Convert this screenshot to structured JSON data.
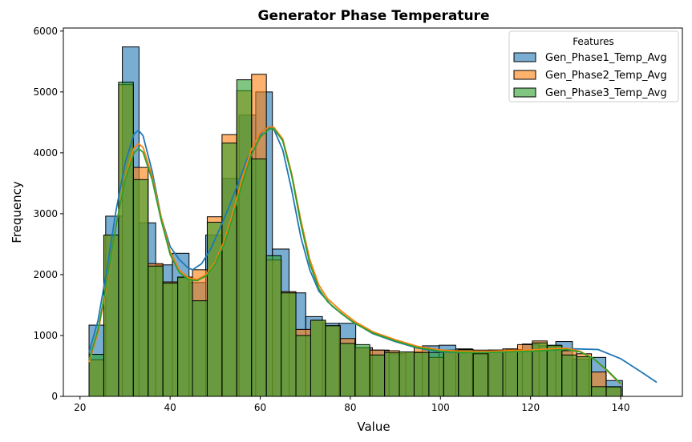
{
  "chart_data": {
    "type": "bar",
    "title": "Generator Phase Temperature",
    "xlabel": "Value",
    "ylabel": "Frequency",
    "xlim": [
      16.3,
      153.7
    ],
    "ylim": [
      0,
      6050
    ],
    "xticks": [
      20,
      40,
      60,
      80,
      100,
      120,
      140
    ],
    "yticks": [
      0,
      1000,
      2000,
      3000,
      4000,
      5000,
      6000
    ],
    "legend": {
      "title": "Features",
      "position": "top-right"
    },
    "colors": {
      "Gen_Phase1_Temp_Avg": "#1f77b4",
      "Gen_Phase2_Temp_Avg": "#ff7f0e",
      "Gen_Phase3_Temp_Avg": "#2ca02c"
    },
    "series": [
      {
        "name": "Gen_Phase1_Temp_Avg",
        "bin_start": 22,
        "bin_width": 3.7,
        "values": [
          1170,
          2960,
          5740,
          2850,
          2160,
          2350,
          1870,
          2650,
          3580,
          4620,
          5000,
          2420,
          1700,
          1310,
          1200,
          1200,
          800,
          760,
          700,
          730,
          830,
          840,
          780,
          760,
          760,
          770,
          860,
          830,
          900,
          610,
          640,
          260
        ],
        "kde": [
          [
            22,
            720
          ],
          [
            24,
            1250
          ],
          [
            26,
            2100
          ],
          [
            28,
            3050
          ],
          [
            30,
            3830
          ],
          [
            32,
            4310
          ],
          [
            33,
            4370
          ],
          [
            34,
            4280
          ],
          [
            36,
            3700
          ],
          [
            38,
            2950
          ],
          [
            40,
            2460
          ],
          [
            42,
            2250
          ],
          [
            44,
            2110
          ],
          [
            45,
            2080
          ],
          [
            47,
            2180
          ],
          [
            49,
            2420
          ],
          [
            51,
            2750
          ],
          [
            53,
            3100
          ],
          [
            55,
            3480
          ],
          [
            57,
            3880
          ],
          [
            59,
            4200
          ],
          [
            61,
            4390
          ],
          [
            62,
            4410
          ],
          [
            63,
            4390
          ],
          [
            65,
            4050
          ],
          [
            67,
            3380
          ],
          [
            69,
            2620
          ],
          [
            71,
            2080
          ],
          [
            73,
            1730
          ],
          [
            76,
            1480
          ],
          [
            80,
            1250
          ],
          [
            85,
            1030
          ],
          [
            90,
            900
          ],
          [
            95,
            790
          ],
          [
            100,
            730
          ],
          [
            105,
            720
          ],
          [
            110,
            730
          ],
          [
            115,
            740
          ],
          [
            120,
            745
          ],
          [
            125,
            760
          ],
          [
            130,
            780
          ],
          [
            135,
            770
          ],
          [
            140,
            620
          ],
          [
            145,
            380
          ],
          [
            148,
            230
          ]
        ]
      },
      {
        "name": "Gen_Phase2_Temp_Avg",
        "bin_start": 22,
        "bin_width": 3.28,
        "values": [
          600,
          2650,
          5120,
          3760,
          2180,
          1880,
          1950,
          2080,
          2950,
          4300,
          5020,
          5290,
          2240,
          1720,
          1100,
          1250,
          1160,
          950,
          800,
          760,
          750,
          730,
          800,
          640,
          750,
          760,
          730,
          760,
          780,
          850,
          910,
          830,
          750,
          700,
          400,
          150
        ],
        "kde": [
          [
            22,
            560
          ],
          [
            24,
            1050
          ],
          [
            26,
            1850
          ],
          [
            28,
            2800
          ],
          [
            30,
            3580
          ],
          [
            32,
            4080
          ],
          [
            33,
            4150
          ],
          [
            34,
            4090
          ],
          [
            36,
            3620
          ],
          [
            38,
            2950
          ],
          [
            40,
            2380
          ],
          [
            42,
            2080
          ],
          [
            44,
            1950
          ],
          [
            46,
            1920
          ],
          [
            48,
            2000
          ],
          [
            50,
            2200
          ],
          [
            52,
            2550
          ],
          [
            54,
            3030
          ],
          [
            56,
            3580
          ],
          [
            58,
            4050
          ],
          [
            60,
            4330
          ],
          [
            62,
            4430
          ],
          [
            63,
            4420
          ],
          [
            65,
            4230
          ],
          [
            67,
            3650
          ],
          [
            69,
            2900
          ],
          [
            71,
            2250
          ],
          [
            73,
            1830
          ],
          [
            75,
            1600
          ],
          [
            78,
            1400
          ],
          [
            81,
            1230
          ],
          [
            85,
            1060
          ],
          [
            90,
            930
          ],
          [
            95,
            820
          ],
          [
            100,
            760
          ],
          [
            105,
            740
          ],
          [
            110,
            740
          ],
          [
            115,
            750
          ],
          [
            120,
            760
          ],
          [
            125,
            780
          ],
          [
            128,
            790
          ],
          [
            131,
            740
          ],
          [
            134,
            620
          ],
          [
            137,
            420
          ],
          [
            140,
            200
          ]
        ]
      },
      {
        "name": "Gen_Phase3_Temp_Avg",
        "bin_start": 22,
        "bin_width": 3.28,
        "values": [
          690,
          2650,
          5160,
          3560,
          2140,
          1860,
          1960,
          1570,
          2860,
          4160,
          5200,
          3900,
          2310,
          1700,
          1000,
          1250,
          1160,
          870,
          850,
          680,
          720,
          730,
          720,
          720,
          760,
          770,
          700,
          750,
          750,
          740,
          880,
          840,
          680,
          650,
          160,
          160
        ],
        "kde": [
          [
            22,
            600
          ],
          [
            24,
            1100
          ],
          [
            26,
            1900
          ],
          [
            28,
            2800
          ],
          [
            30,
            3550
          ],
          [
            32,
            4000
          ],
          [
            33,
            4070
          ],
          [
            34,
            4010
          ],
          [
            36,
            3560
          ],
          [
            38,
            2900
          ],
          [
            40,
            2330
          ],
          [
            42,
            2040
          ],
          [
            44,
            1920
          ],
          [
            46,
            1900
          ],
          [
            48,
            1980
          ],
          [
            50,
            2170
          ],
          [
            52,
            2500
          ],
          [
            54,
            2960
          ],
          [
            56,
            3500
          ],
          [
            58,
            3960
          ],
          [
            60,
            4260
          ],
          [
            62,
            4390
          ],
          [
            63,
            4400
          ],
          [
            65,
            4200
          ],
          [
            67,
            3620
          ],
          [
            69,
            2840
          ],
          [
            71,
            2180
          ],
          [
            73,
            1770
          ],
          [
            75,
            1550
          ],
          [
            78,
            1360
          ],
          [
            81,
            1200
          ],
          [
            85,
            1040
          ],
          [
            90,
            910
          ],
          [
            95,
            800
          ],
          [
            100,
            740
          ],
          [
            105,
            720
          ],
          [
            110,
            720
          ],
          [
            115,
            730
          ],
          [
            120,
            740
          ],
          [
            125,
            760
          ],
          [
            128,
            770
          ],
          [
            131,
            730
          ],
          [
            134,
            620
          ],
          [
            137,
            430
          ],
          [
            140,
            210
          ]
        ]
      }
    ]
  }
}
